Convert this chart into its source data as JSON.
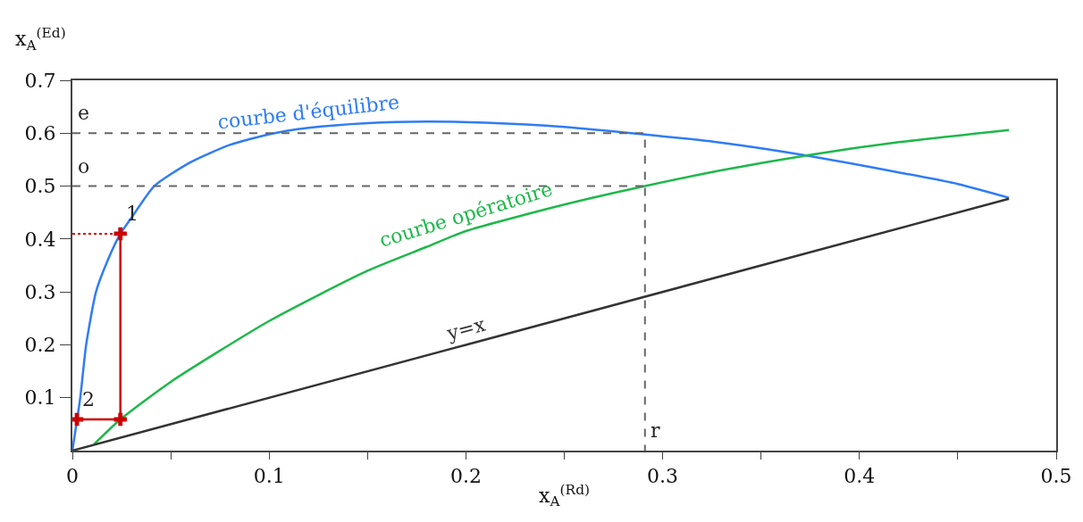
{
  "chart_data": {
    "type": "line",
    "xlabel": "x$_{A}$$^{(Rd)}$",
    "ylabel": "x$_{A}$$^{(Ed)}$",
    "xlim": [
      0,
      0.5
    ],
    "ylim": [
      0,
      0.7
    ],
    "xticks": [
      0,
      {
        "value": 0.05,
        "label": null
      },
      0.1,
      {
        "value": 0.15,
        "label": null
      },
      0.2,
      {
        "value": 0.25,
        "label": null
      },
      0.3,
      {
        "value": 0.35,
        "label": null
      },
      0.4,
      {
        "value": 0.45,
        "label": null
      },
      0.5
    ],
    "yticks": [
      0.1,
      0.2,
      0.3,
      0.4,
      0.5,
      0.6,
      0.7
    ],
    "legend": false,
    "series": [
      {
        "name": "courbe d'équilibre",
        "color": "#2f7cf6",
        "x": [
          0,
          0.004,
          0.007,
          0.012,
          0.018,
          0.0244,
          0.03,
          0.0416,
          0.06,
          0.08,
          0.1,
          0.12,
          0.15,
          0.18,
          0.21,
          0.25,
          0.29,
          0.33,
          0.373,
          0.42,
          0.45,
          0.476
        ],
        "values": [
          0,
          0.1,
          0.2,
          0.3,
          0.36,
          0.41,
          0.44,
          0.5,
          0.545,
          0.578,
          0.598,
          0.61,
          0.619,
          0.622,
          0.62,
          0.612,
          0.598,
          0.582,
          0.558,
          0.526,
          0.504,
          0.478
        ]
      },
      {
        "name": "courbe opératoire",
        "color": "#1db84a",
        "x": [
          0.011,
          0.0244,
          0.05,
          0.1,
          0.15,
          0.18,
          0.2,
          0.25,
          0.291,
          0.33,
          0.373,
          0.42,
          0.476
        ],
        "values": [
          0.012,
          0.059,
          0.13,
          0.245,
          0.34,
          0.385,
          0.415,
          0.465,
          0.5,
          0.53,
          0.558,
          0.583,
          0.606
        ]
      },
      {
        "name": "y=x",
        "color": "#333333",
        "x": [
          0,
          0.2,
          0.476
        ],
        "values": [
          0,
          0.2,
          0.476
        ]
      },
      {
        "color": "#666666",
        "line_style": "dashed",
        "x": [
          0,
          0.291,
          0.291
        ],
        "values": [
          0.6,
          0.6,
          0
        ]
      },
      {
        "color": "#666666",
        "line_style": "dashed",
        "x": [
          0,
          0.291
        ],
        "values": [
          0.5,
          0.5
        ]
      },
      {
        "color": "#cc0000",
        "marker": "cross",
        "x": [
          0.0023,
          0.0244,
          0.0244
        ],
        "values": [
          0.059,
          0.059,
          0.41
        ]
      },
      {
        "color": "#cc0000",
        "line_style": "dotted",
        "x": [
          0,
          0.0244
        ],
        "values": [
          0.41,
          0.41
        ]
      }
    ],
    "annotations": [
      {
        "text": "e",
        "x": 0,
        "y": 0.6
      },
      {
        "text": "o",
        "x": 0,
        "y": 0.5
      },
      {
        "text": "r",
        "x": 0.291,
        "y": 0
      },
      {
        "text": "1",
        "x": 0.0244,
        "y": 0.41
      },
      {
        "text": "2",
        "x": 0.0023,
        "y": 0.059
      }
    ]
  }
}
